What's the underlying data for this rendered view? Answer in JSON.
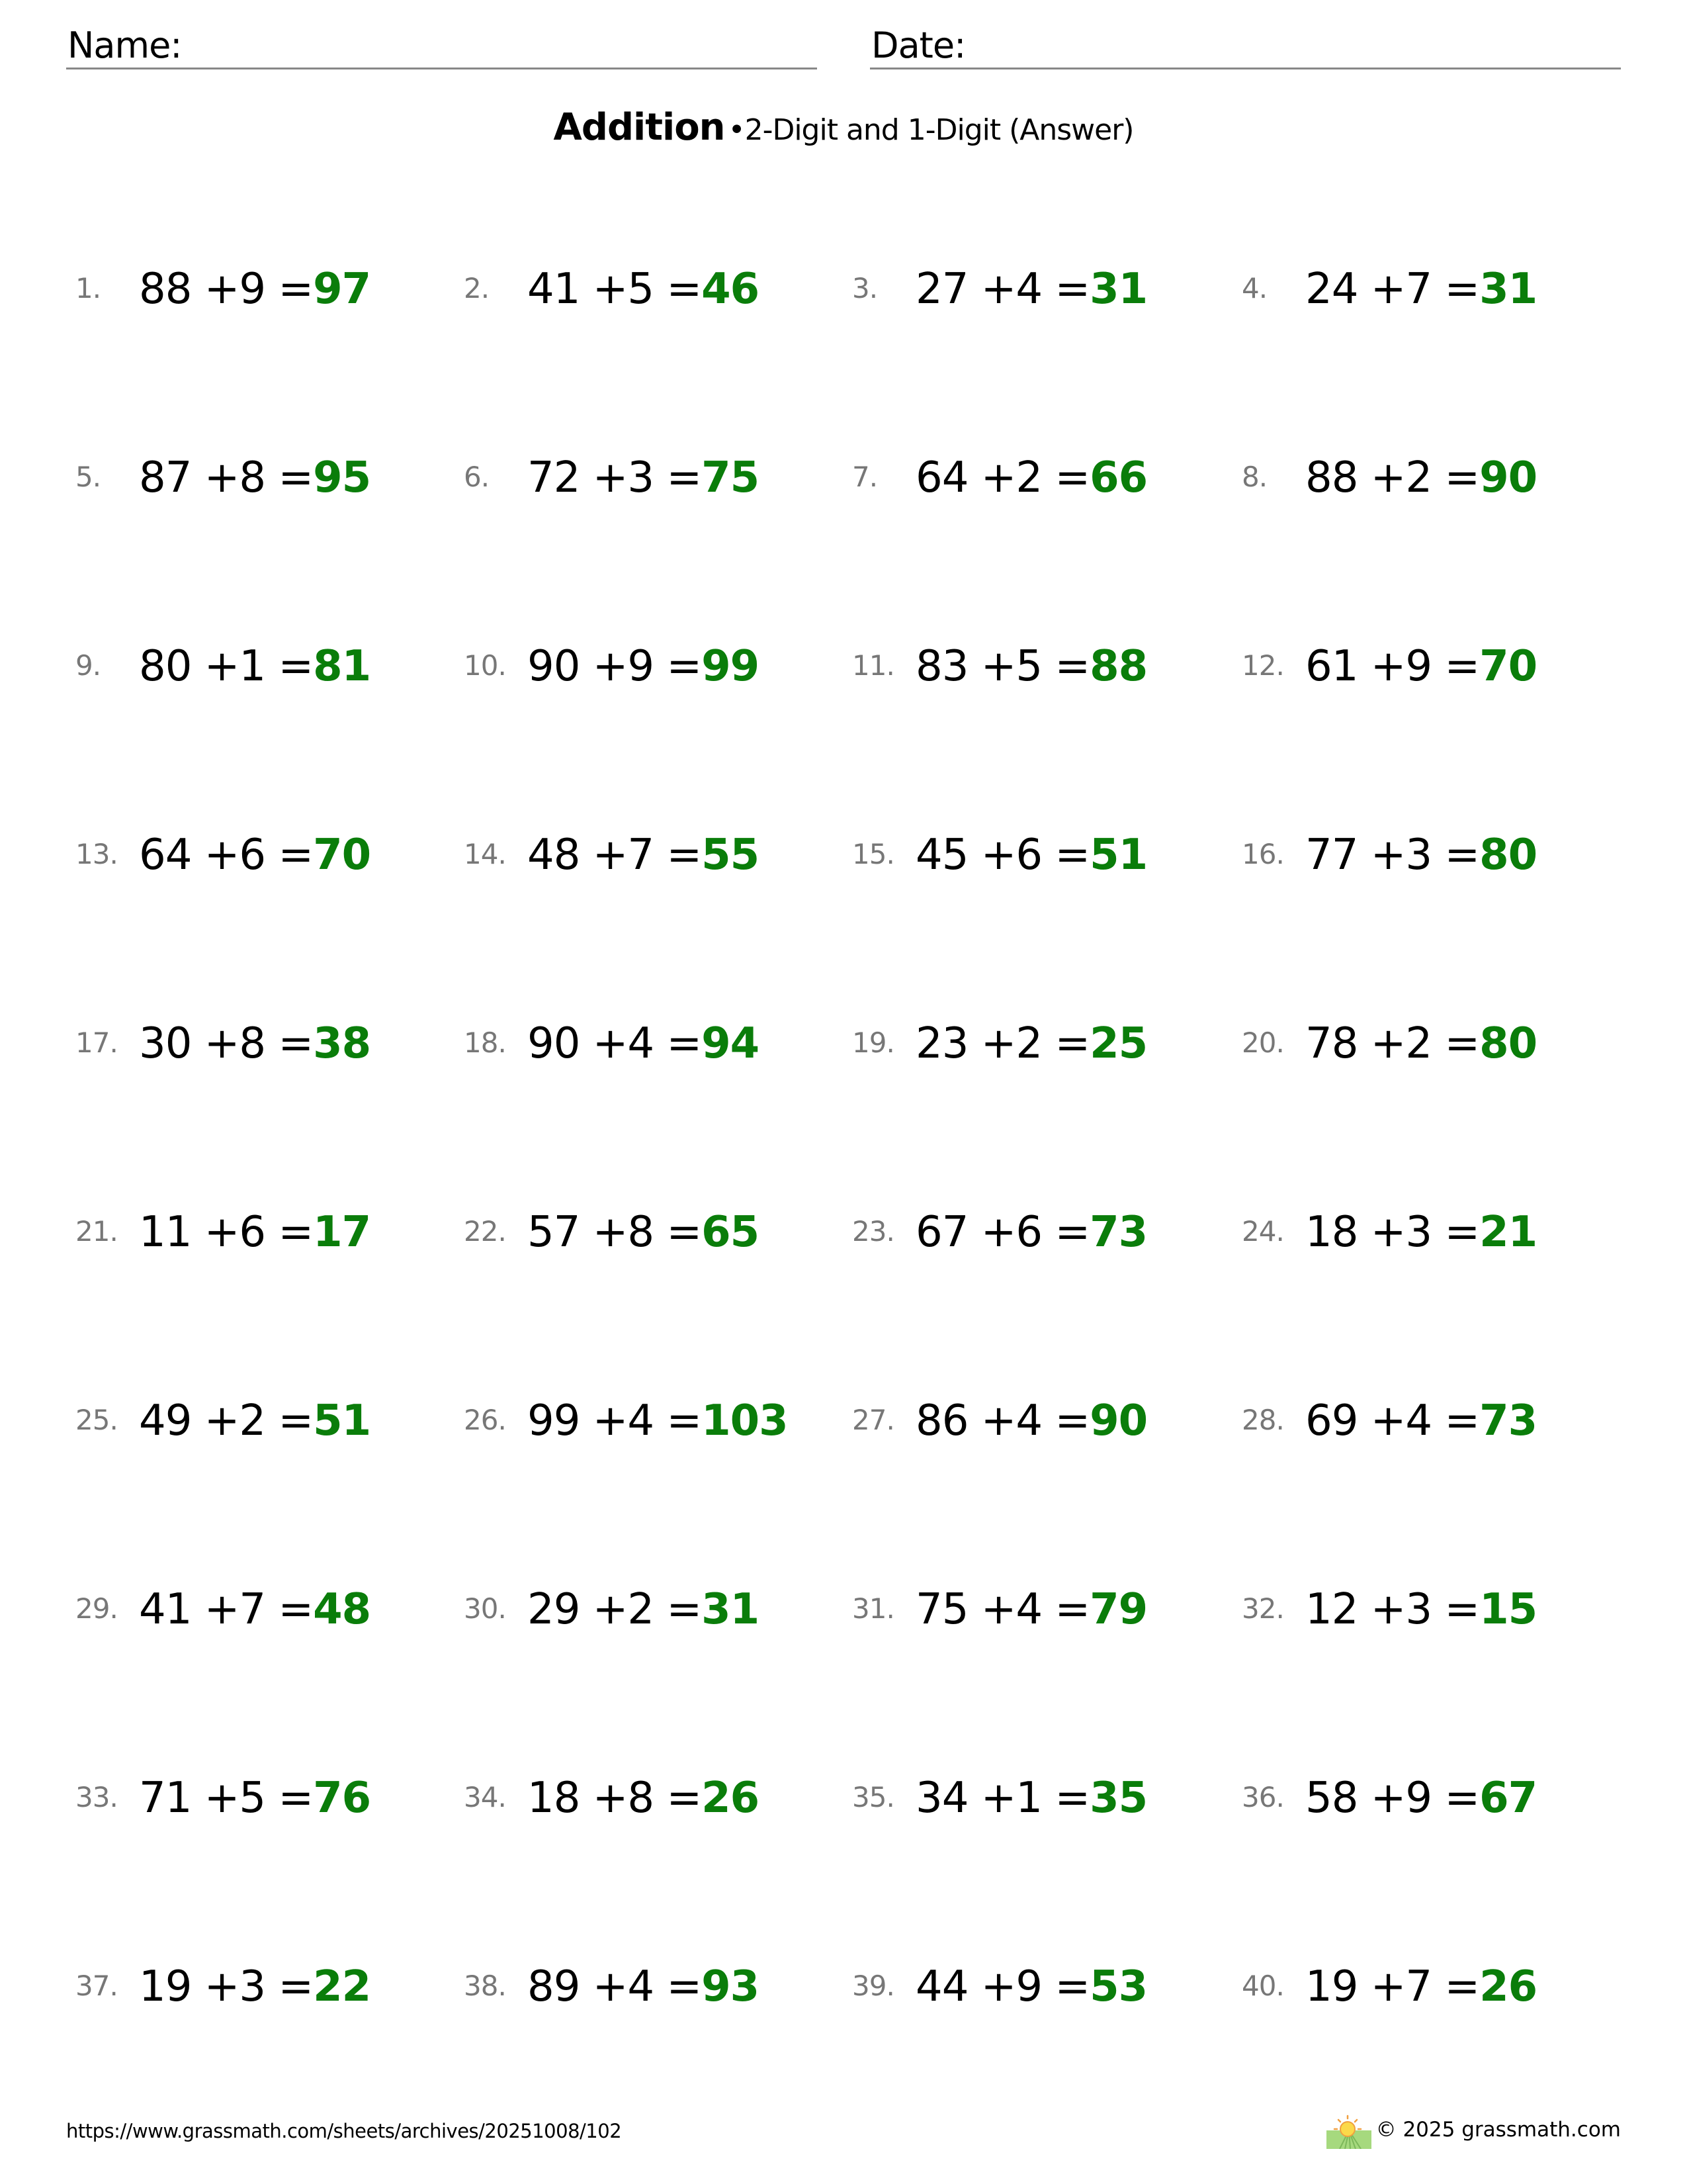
{
  "header": {
    "name_label": "Name:",
    "date_label": "Date:"
  },
  "title": {
    "main": "Addition",
    "separator": "•",
    "sub": "2-Digit and 1-Digit (Answer)"
  },
  "colors": {
    "answer": "#0a7d0a",
    "number": "#777777"
  },
  "problems": [
    {
      "n": "1.",
      "a": "88",
      "b": "9",
      "ans": "97"
    },
    {
      "n": "2.",
      "a": "41",
      "b": "5",
      "ans": "46"
    },
    {
      "n": "3.",
      "a": "27",
      "b": "4",
      "ans": "31"
    },
    {
      "n": "4.",
      "a": "24",
      "b": "7",
      "ans": "31"
    },
    {
      "n": "5.",
      "a": "87",
      "b": "8",
      "ans": "95"
    },
    {
      "n": "6.",
      "a": "72",
      "b": "3",
      "ans": "75"
    },
    {
      "n": "7.",
      "a": "64",
      "b": "2",
      "ans": "66"
    },
    {
      "n": "8.",
      "a": "88",
      "b": "2",
      "ans": "90"
    },
    {
      "n": "9.",
      "a": "80",
      "b": "1",
      "ans": "81"
    },
    {
      "n": "10.",
      "a": "90",
      "b": "9",
      "ans": "99"
    },
    {
      "n": "11.",
      "a": "83",
      "b": "5",
      "ans": "88"
    },
    {
      "n": "12.",
      "a": "61",
      "b": "9",
      "ans": "70"
    },
    {
      "n": "13.",
      "a": "64",
      "b": "6",
      "ans": "70"
    },
    {
      "n": "14.",
      "a": "48",
      "b": "7",
      "ans": "55"
    },
    {
      "n": "15.",
      "a": "45",
      "b": "6",
      "ans": "51"
    },
    {
      "n": "16.",
      "a": "77",
      "b": "3",
      "ans": "80"
    },
    {
      "n": "17.",
      "a": "30",
      "b": "8",
      "ans": "38"
    },
    {
      "n": "18.",
      "a": "90",
      "b": "4",
      "ans": "94"
    },
    {
      "n": "19.",
      "a": "23",
      "b": "2",
      "ans": "25"
    },
    {
      "n": "20.",
      "a": "78",
      "b": "2",
      "ans": "80"
    },
    {
      "n": "21.",
      "a": "11",
      "b": "6",
      "ans": "17"
    },
    {
      "n": "22.",
      "a": "57",
      "b": "8",
      "ans": "65"
    },
    {
      "n": "23.",
      "a": "67",
      "b": "6",
      "ans": "73"
    },
    {
      "n": "24.",
      "a": "18",
      "b": "3",
      "ans": "21"
    },
    {
      "n": "25.",
      "a": "49",
      "b": "2",
      "ans": "51"
    },
    {
      "n": "26.",
      "a": "99",
      "b": "4",
      "ans": "103"
    },
    {
      "n": "27.",
      "a": "86",
      "b": "4",
      "ans": "90"
    },
    {
      "n": "28.",
      "a": "69",
      "b": "4",
      "ans": "73"
    },
    {
      "n": "29.",
      "a": "41",
      "b": "7",
      "ans": "48"
    },
    {
      "n": "30.",
      "a": "29",
      "b": "2",
      "ans": "31"
    },
    {
      "n": "31.",
      "a": "75",
      "b": "4",
      "ans": "79"
    },
    {
      "n": "32.",
      "a": "12",
      "b": "3",
      "ans": "15"
    },
    {
      "n": "33.",
      "a": "71",
      "b": "5",
      "ans": "76"
    },
    {
      "n": "34.",
      "a": "18",
      "b": "8",
      "ans": "26"
    },
    {
      "n": "35.",
      "a": "34",
      "b": "1",
      "ans": "35"
    },
    {
      "n": "36.",
      "a": "58",
      "b": "9",
      "ans": "67"
    },
    {
      "n": "37.",
      "a": "19",
      "b": "3",
      "ans": "22"
    },
    {
      "n": "38.",
      "a": "89",
      "b": "4",
      "ans": "93"
    },
    {
      "n": "39.",
      "a": "44",
      "b": "9",
      "ans": "53"
    },
    {
      "n": "40.",
      "a": "19",
      "b": "7",
      "ans": "26"
    }
  ],
  "operator": "+",
  "equals": "=",
  "footer": {
    "url": "https://www.grassmath.com/sheets/archives/20251008/102",
    "copyright": "© 2025 grassmath.com",
    "logo_icon": "sun-over-grass-icon"
  }
}
